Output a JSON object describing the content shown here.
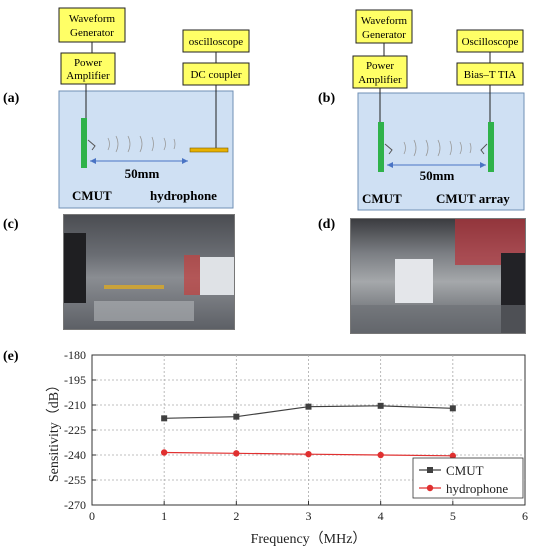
{
  "panel_labels": {
    "a": "(a)",
    "b": "(b)",
    "c": "(c)",
    "d": "(d)",
    "e": "(e)"
  },
  "panel_a": {
    "waveform_generator": [
      "Waveform",
      "Generator"
    ],
    "power_amplifier": [
      "Power",
      "Amplifier"
    ],
    "oscilloscope": "oscilloscope",
    "dc_coupler": "DC coupler",
    "distance": "50mm",
    "cmut": "CMUT",
    "hydrophone": "hydrophone"
  },
  "panel_b": {
    "waveform_generator": [
      "Waveform",
      "Generator"
    ],
    "power_amplifier": [
      "Power",
      "Amplifier"
    ],
    "oscilloscope": "Oscilloscope",
    "bias_tia": "Bias–T TIA",
    "distance": "50mm",
    "cmut": "CMUT",
    "cmut_array": "CMUT array"
  },
  "colors": {
    "box_fill": "#ffff66",
    "tank_fill": "#cfe0f3",
    "tank_border": "#6f8fb5",
    "transducer": "#2fb24a",
    "hydrophone": "#e8b100",
    "arrow": "#4a74c4",
    "cmut_series": "#404040",
    "hydrophone_series": "#e03030"
  },
  "chart_data": {
    "type": "line",
    "xlabel": "Frequency（MHz）",
    "ylabel": "Sensitivity（dB）",
    "xlim": [
      0,
      6
    ],
    "ylim": [
      -270,
      -180
    ],
    "xticks": [
      "0",
      "1",
      "2",
      "3",
      "4",
      "5",
      "6"
    ],
    "yticks": [
      "-180",
      "-195",
      "-210",
      "-225",
      "-240",
      "-255",
      "-270"
    ],
    "grid": true,
    "legend_position": "bottom-right",
    "x": [
      1,
      2,
      3,
      4,
      5
    ],
    "series": [
      {
        "name": "CMUT",
        "values": [
          -218,
          -217,
          -211,
          -210.5,
          -212
        ],
        "marker": "square"
      },
      {
        "name": "hydrophone",
        "values": [
          -238.5,
          -239,
          -239.5,
          -240,
          -240.5
        ],
        "marker": "circle"
      }
    ]
  }
}
